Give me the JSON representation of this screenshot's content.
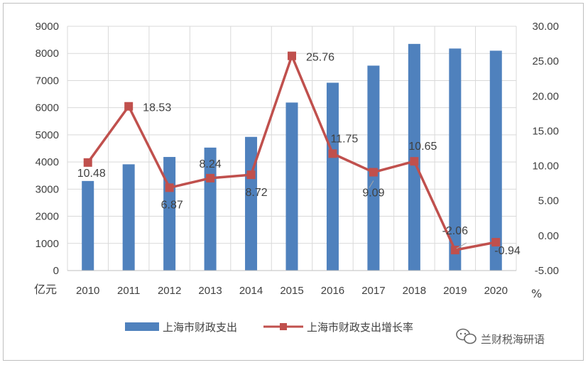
{
  "chart_data": {
    "type": "bar+line",
    "categories": [
      "2010",
      "2011",
      "2012",
      "2013",
      "2014",
      "2015",
      "2016",
      "2017",
      "2018",
      "2019",
      "2020"
    ],
    "series": [
      {
        "name": "上海市财政支出",
        "type": "bar",
        "axis": "left",
        "color": "#4f81bd",
        "values": [
          3300,
          3915,
          4185,
          4530,
          4925,
          6190,
          6920,
          7550,
          8350,
          8180,
          8100
        ]
      },
      {
        "name": "上海市财政支出增长率",
        "type": "line",
        "axis": "right",
        "color": "#c0504d",
        "values": [
          10.48,
          18.53,
          6.87,
          8.24,
          8.72,
          25.76,
          11.75,
          9.09,
          10.65,
          -2.06,
          -0.94
        ],
        "labels": [
          "10.48",
          "18.53",
          "6.87",
          "8.24",
          "8.72",
          "25.76",
          "11.75",
          "9.09",
          "10.65",
          "-2.06",
          "-0.94"
        ]
      }
    ],
    "left_axis": {
      "unit": "亿元",
      "range": [
        0,
        9000
      ],
      "ticks": [
        "0",
        "1000",
        "2000",
        "3000",
        "4000",
        "5000",
        "6000",
        "7000",
        "8000",
        "9000"
      ]
    },
    "right_axis": {
      "unit": "%",
      "range": [
        -5,
        30
      ],
      "ticks": [
        "-5.00",
        "0.00",
        "5.00",
        "10.00",
        "15.00",
        "20.00",
        "25.00",
        "30.00"
      ]
    },
    "grid": true,
    "legend_position": "bottom"
  },
  "watermark": {
    "text": "兰财税海研语",
    "icon": "wechat-icon"
  }
}
